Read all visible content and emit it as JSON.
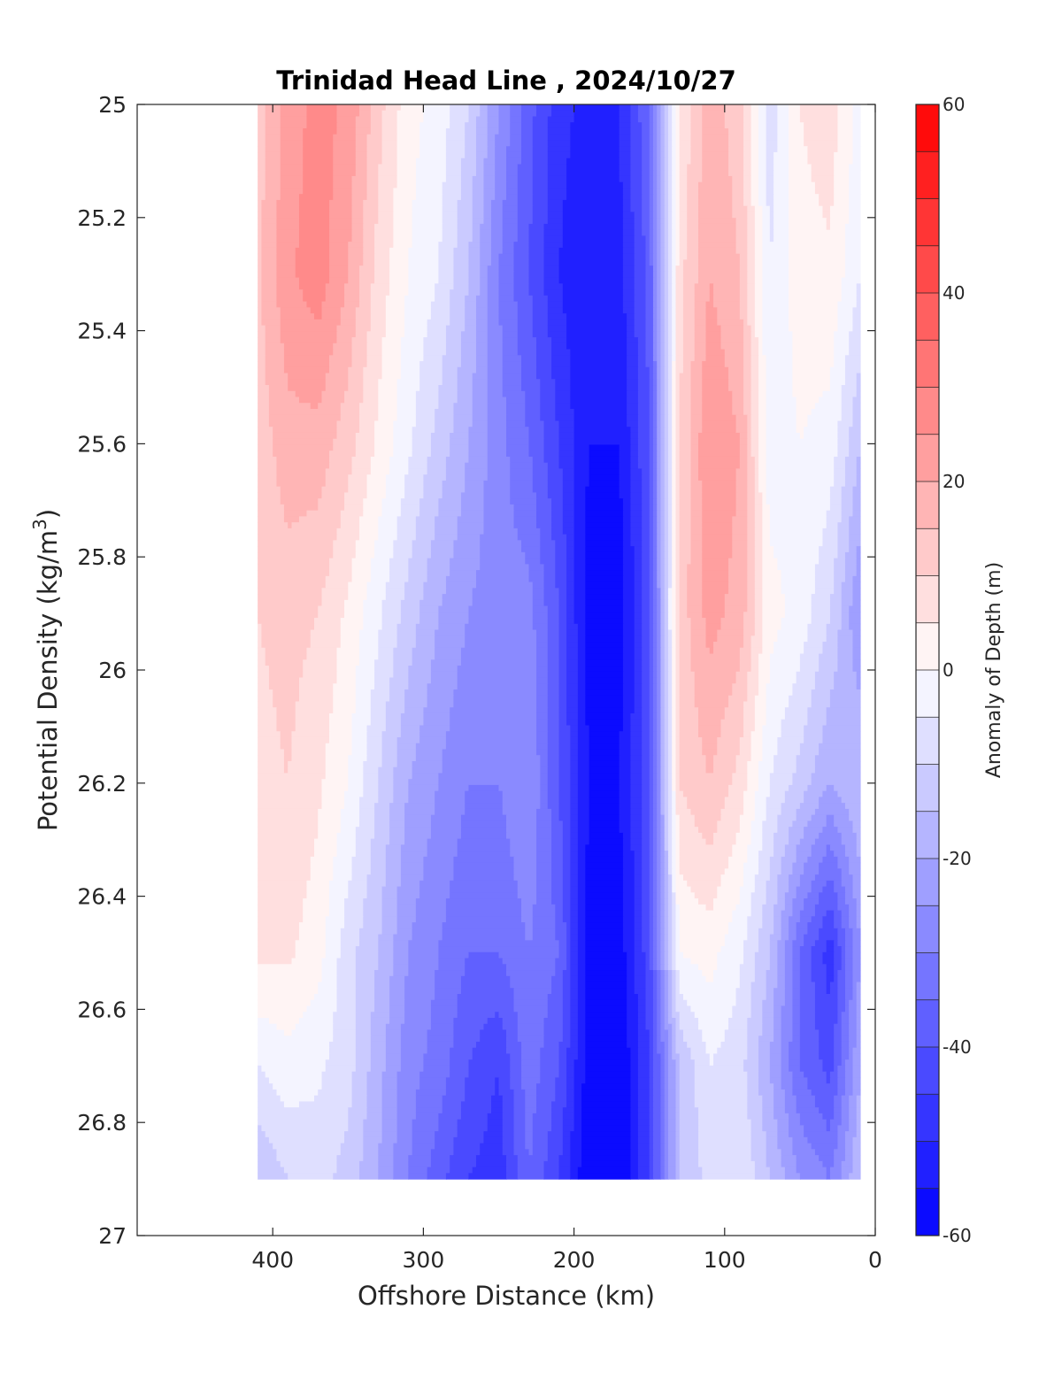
{
  "chart_data": {
    "type": "heatmap",
    "title": "Trinidad Head Line , 2024/10/27",
    "xlabel": "Offshore Distance (km)",
    "ylabel": "Potential Density (kg/m",
    "ylabel_sup": "3",
    "ylabel_close": ")",
    "xlim": [
      490,
      0
    ],
    "ylim": [
      25,
      27
    ],
    "y_reversed": true,
    "x_reversed": true,
    "xticks": [
      "400",
      "300",
      "200",
      "100",
      "0"
    ],
    "xtick_values": [
      400,
      300,
      200,
      100,
      0
    ],
    "yticks": [
      "25",
      "25.2",
      "25.4",
      "25.6",
      "25.8",
      "26",
      "26.2",
      "26.4",
      "26.6",
      "26.8",
      "27"
    ],
    "ytick_values": [
      25,
      25.2,
      25.4,
      25.6,
      25.8,
      26,
      26.2,
      26.4,
      26.6,
      26.8,
      27
    ],
    "colorbar": {
      "label": "Anomaly of Depth (m)",
      "range": [
        -60,
        60
      ],
      "ticks": [
        "60",
        "40",
        "20",
        "0",
        "-20",
        "-40",
        "-60"
      ],
      "tick_values": [
        60,
        40,
        20,
        0,
        -20,
        -40,
        -60
      ],
      "levels": 24,
      "colormap": "blue-white-red",
      "min_color": "#0000ff",
      "mid_color": "#ffffff",
      "max_color": "#ff0000"
    },
    "grid": false,
    "data_extent": {
      "x": [
        410,
        10
      ],
      "y": [
        25,
        26.9
      ]
    },
    "columns_x": [
      410,
      390,
      370,
      350,
      330,
      310,
      290,
      270,
      250,
      230,
      210,
      190,
      170,
      150,
      130,
      110,
      90,
      70,
      50,
      30,
      10
    ],
    "rows_y": [
      25.0,
      25.3,
      25.6,
      25.9,
      26.2,
      26.5,
      26.7,
      26.9
    ],
    "values": [
      [
        12,
        22,
        27,
        24,
        12,
        2,
        -2,
        -10,
        -25,
        -38,
        -48,
        -52,
        -50,
        -35,
        5,
        18,
        12,
        -8,
        5,
        8,
        -2
      ],
      [
        14,
        24,
        28,
        20,
        8,
        0,
        -5,
        -15,
        -30,
        -40,
        -50,
        -55,
        -52,
        -38,
        8,
        20,
        15,
        -5,
        3,
        4,
        -5
      ],
      [
        12,
        18,
        18,
        12,
        4,
        -4,
        -12,
        -20,
        -28,
        -35,
        -45,
        -55,
        -55,
        -40,
        10,
        25,
        20,
        -3,
        0,
        -2,
        -15
      ],
      [
        10,
        12,
        10,
        4,
        -4,
        -12,
        -20,
        -25,
        -28,
        -28,
        -40,
        -58,
        -58,
        -42,
        12,
        22,
        18,
        2,
        -2,
        -10,
        -25
      ],
      [
        8,
        10,
        6,
        0,
        -10,
        -20,
        -25,
        -30,
        -30,
        -25,
        -40,
        -55,
        -55,
        -42,
        10,
        15,
        8,
        -5,
        -12,
        -20,
        -15
      ],
      [
        6,
        6,
        2,
        -8,
        -15,
        -25,
        -30,
        -35,
        -35,
        -30,
        -35,
        -58,
        -58,
        -42,
        0,
        2,
        -4,
        -15,
        -35,
        -48,
        -25
      ],
      [
        -5,
        -2,
        -4,
        -8,
        -18,
        -28,
        -32,
        -40,
        -45,
        -32,
        -40,
        -58,
        -60,
        -45,
        -15,
        -5,
        -8,
        -20,
        -35,
        -42,
        -20
      ],
      [
        -15,
        -10,
        -8,
        -12,
        -20,
        -30,
        -38,
        -45,
        -48,
        -35,
        -45,
        -60,
        -60,
        -45,
        -15,
        -8,
        -5,
        -15,
        -25,
        -30,
        -15
      ]
    ]
  }
}
